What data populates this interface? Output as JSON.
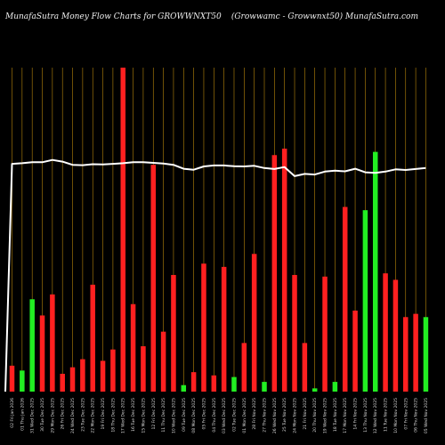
{
  "chart_data": {
    "type": "bar",
    "title_left": "MunafaSutra  Money Flow  Charts for GROWWNXT50",
    "title_right": "(Growwamc -   Growwnxt50) MunafaSutra.com",
    "ylim": [
      0,
      100
    ],
    "grid": "vertical lines at each bar",
    "colors": {
      "up": "#22ee22",
      "down": "#ff2020",
      "line": "#ffffff",
      "grid": "#b8860b",
      "background": "#000000"
    },
    "categories": [
      "02 Fri Jan 2026",
      "01 Thu Jan 2026",
      "31 Wed Dec 2025",
      "30 Tue Dec 2025",
      "29 Mon Dec 2025",
      "26 Fri Dec 2025",
      "24 Wed Dec 2025",
      "23 Tue Dec 2025",
      "22 Mon Dec 2025",
      "19 Fri Dec 2025",
      "18 Thu Dec 2025",
      "17 Wed Dec 2025",
      "16 Tue Dec 2025",
      "15 Mon Dec 2025",
      "12 Fri Dec 2025",
      "11 Thu Dec 2025",
      "10 Wed Dec 2025",
      "09 Tue Dec 2025",
      "08 Mon Dec 2025",
      "05 Fri Dec 2025",
      "04 Thu Dec 2025",
      "03 Wed Dec 2025",
      "02 Tue Dec 2025",
      "01 Mon Dec 2025",
      "28 Fri Nov 2025",
      "27 Thu Nov 2025",
      "26 Wed Nov 2025",
      "25 Tue Nov 2025",
      "24 Mon Nov 2025",
      "21 Fri Nov 2025",
      "20 Thu Nov 2025",
      "19 Wed Nov 2025",
      "18 Tue Nov 2025",
      "17 Mon Nov 2025",
      "14 Fri Nov 2025",
      "13 Thu Nov 2025",
      "12 Wed Nov 2025",
      "11 Tue Nov 2025",
      "10 Mon Nov 2025",
      "07 Fri Nov 2025",
      "06 Thu Nov 2025",
      "05 Wed Nov 2025"
    ],
    "bar_colors": [
      "red",
      "green",
      "green",
      "red",
      "red",
      "red",
      "red",
      "red",
      "red",
      "red",
      "red",
      "red",
      "red",
      "red",
      "red",
      "red",
      "red",
      "green",
      "red",
      "red",
      "red",
      "red",
      "green",
      "red",
      "red",
      "green",
      "red",
      "red",
      "red",
      "red",
      "green",
      "red",
      "green",
      "red",
      "red",
      "green",
      "green",
      "red",
      "red",
      "red",
      "red",
      "green"
    ],
    "values": [
      8,
      6.5,
      28.5,
      23.5,
      30,
      5.5,
      7.5,
      10,
      33,
      9.5,
      13,
      100,
      27,
      14,
      70,
      18.5,
      36,
      2,
      6,
      39.5,
      5,
      38.5,
      4.5,
      15,
      42.5,
      3,
      73,
      75,
      36,
      15,
      1,
      35.5,
      3,
      57,
      25,
      56,
      74,
      36.5,
      34.5,
      23,
      24,
      23
    ],
    "line_series": [
      70.3,
      70.5,
      70.8,
      70.8,
      71.5,
      71.0,
      70.0,
      69.9,
      70.2,
      70.1,
      70.3,
      70.5,
      70.8,
      70.8,
      70.6,
      70.4,
      70.0,
      68.8,
      68.5,
      69.5,
      69.8,
      69.8,
      69.6,
      69.5,
      69.7,
      69.0,
      68.7,
      69.3,
      66.5,
      67.2,
      67.0,
      67.9,
      68.2,
      68.0,
      68.8,
      67.7,
      67.5,
      67.9,
      68.6,
      68.4,
      68.7,
      69.0
    ]
  }
}
